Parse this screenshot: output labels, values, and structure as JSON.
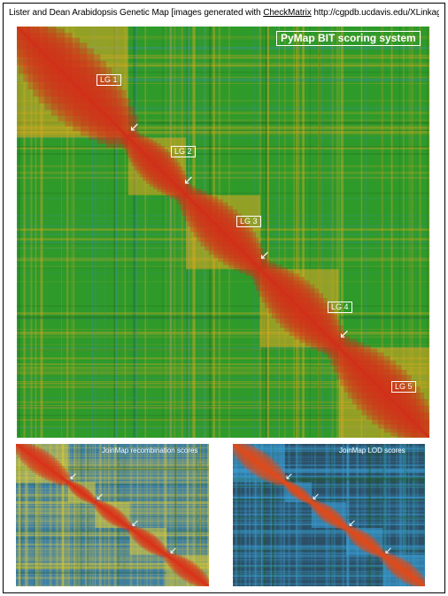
{
  "header": {
    "title_prefix": "Lister and Dean Arabidopsis Genetic Map  [images generated with ",
    "checkmatrix_link": "CheckMatrix",
    "title_suffix": " http://cgpdb.ucdavis.edu/XLinkage/]"
  },
  "main_panel": {
    "badge": "PyMap BIT scoring system",
    "linkage_groups": [
      "LG 1",
      "LG 2",
      "LG 3",
      "LG 4",
      "LG 5"
    ],
    "arrow_count": 4,
    "colors": {
      "background": "#2e9a2a",
      "high": "#d0301a",
      "mid": "#e6a820",
      "low": "#3d8fb0"
    }
  },
  "recombination_panel": {
    "title": "JoinMap recombination scores",
    "arrow_count": 4,
    "colors": {
      "background": "#3e7fa8",
      "high": "#d9341a",
      "mid": "#d8c83a"
    }
  },
  "lod_panel": {
    "title": "JoinMap LOD scores",
    "arrow_count": 4,
    "colors": {
      "background": "#2c4f66",
      "high": "#e04a1a",
      "mid": "#3aa0d8"
    }
  }
}
